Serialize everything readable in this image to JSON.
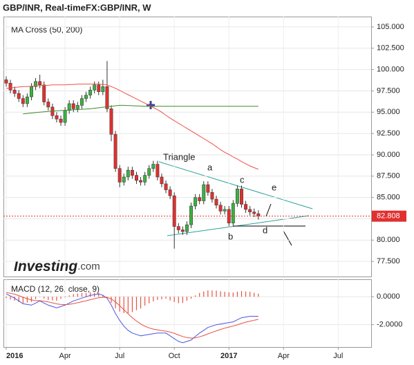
{
  "chart_data": [
    {
      "type": "candlestick",
      "title": "GBP/INR, Real-timeFX:GBP/INR, W",
      "indicator": "MA Cross (50, 200)",
      "up_color": "#3cb043",
      "down_color": "#e03030",
      "open": [
        98.8,
        98.4,
        97.6,
        97.2,
        96.6,
        96.0,
        96.8,
        98.0,
        98.6,
        98.2,
        96.2,
        95.6,
        94.6,
        94.2,
        93.8,
        95.2,
        96.0,
        95.4,
        95.8,
        96.6,
        97.0,
        97.6,
        98.2,
        97.4,
        98.0,
        95.4,
        92.4,
        88.4,
        86.8,
        87.4,
        88.2,
        87.6,
        87.0,
        86.8,
        87.6,
        88.4,
        88.9,
        87.4,
        86.6,
        85.9,
        85.2,
        81.6,
        81.2,
        81.0,
        81.8,
        84.0,
        85.0,
        84.6,
        86.5,
        85.6,
        84.8,
        84.1,
        83.4,
        83.6,
        82.0,
        84.3,
        86.0,
        84.2,
        83.6,
        83.3,
        83.1,
        null,
        null,
        null,
        null,
        null,
        null,
        null,
        null,
        null,
        null,
        null,
        null,
        null,
        null,
        null,
        null,
        null,
        null,
        null,
        null,
        null,
        null,
        null,
        null,
        null,
        null
      ],
      "high": [
        99.2,
        98.8,
        98.0,
        97.6,
        97.0,
        97.2,
        98.4,
        99.0,
        99.4,
        98.6,
        96.6,
        96.0,
        95.0,
        94.6,
        95.6,
        96.4,
        96.4,
        96.2,
        97.0,
        97.4,
        98.0,
        98.6,
        98.6,
        98.8,
        101.0,
        95.8,
        92.8,
        88.8,
        87.8,
        88.6,
        88.6,
        88.0,
        87.4,
        88.0,
        88.8,
        89.3,
        89.3,
        87.8,
        87.0,
        86.3,
        85.6,
        82.0,
        81.6,
        82.2,
        84.4,
        85.4,
        85.4,
        86.9,
        86.9,
        86.0,
        85.2,
        84.5,
        84.0,
        84.0,
        84.7,
        86.4,
        86.4,
        84.6,
        84.0,
        83.7,
        83.5,
        null,
        null,
        null,
        null,
        null,
        null,
        null,
        null,
        null,
        null,
        null,
        null,
        null,
        null,
        null,
        null,
        null,
        null,
        null,
        null,
        null,
        null,
        null,
        null,
        null,
        null
      ],
      "low": [
        98.0,
        97.2,
        96.8,
        96.2,
        95.6,
        95.6,
        96.4,
        97.6,
        97.8,
        95.8,
        95.2,
        94.2,
        93.8,
        93.4,
        93.4,
        94.8,
        95.0,
        95.0,
        95.4,
        96.2,
        96.6,
        97.2,
        97.0,
        97.0,
        95.0,
        91.6,
        88.0,
        86.2,
        86.4,
        87.0,
        87.2,
        86.6,
        86.4,
        86.4,
        87.2,
        88.0,
        87.0,
        86.2,
        85.5,
        84.8,
        79.0,
        80.8,
        80.6,
        80.6,
        81.4,
        83.6,
        84.2,
        84.2,
        85.2,
        84.4,
        83.7,
        83.0,
        83.0,
        81.6,
        81.6,
        83.9,
        83.8,
        83.2,
        82.9,
        82.7,
        82.4,
        null,
        null,
        null,
        null,
        null,
        null,
        null,
        null,
        null,
        null,
        null,
        null,
        null,
        null,
        null,
        null,
        null,
        null,
        null,
        null,
        null,
        null,
        null,
        null,
        null,
        null
      ],
      "close": [
        98.4,
        97.6,
        97.2,
        96.6,
        96.0,
        96.8,
        98.0,
        98.6,
        98.2,
        96.2,
        95.6,
        94.6,
        94.2,
        93.8,
        95.2,
        96.0,
        95.4,
        95.8,
        96.6,
        97.0,
        97.6,
        98.2,
        97.4,
        98.0,
        95.4,
        92.4,
        88.4,
        86.8,
        87.4,
        88.2,
        87.6,
        87.0,
        86.8,
        87.6,
        88.4,
        88.9,
        87.4,
        86.6,
        85.9,
        85.2,
        81.6,
        81.2,
        81.0,
        81.8,
        84.0,
        85.0,
        84.6,
        86.5,
        85.6,
        84.8,
        84.1,
        83.4,
        83.6,
        82.0,
        84.3,
        86.0,
        84.2,
        83.6,
        83.3,
        83.1,
        82.808,
        null,
        null,
        null,
        null,
        null,
        null,
        null,
        null,
        null,
        null,
        null,
        null,
        null,
        null,
        null,
        null,
        null,
        null,
        null,
        null,
        null,
        null,
        null,
        null,
        null,
        null
      ],
      "lines": [
        {
          "color": "#f0504a",
          "values": [
            97.8,
            97.85,
            97.9,
            97.95,
            98.0,
            98.0,
            98.05,
            98.1,
            98.1,
            98.15,
            98.15,
            98.2,
            98.2,
            98.2,
            98.2,
            98.25,
            98.25,
            98.3,
            98.3,
            98.3,
            98.3,
            98.3,
            98.3,
            98.25,
            98.2,
            98.0,
            97.8,
            97.55,
            97.3,
            97.05,
            96.8,
            96.55,
            96.3,
            96.05,
            95.8,
            95.55,
            95.3,
            95.0,
            94.65,
            94.3,
            94.0,
            93.7,
            93.4,
            93.1,
            92.8,
            92.5,
            92.2,
            91.9,
            91.6,
            91.3,
            90.95,
            90.6,
            90.3,
            90.05,
            89.75,
            89.5,
            89.2,
            88.95,
            88.7,
            88.5,
            88.3,
            null,
            null,
            null,
            null,
            null,
            null,
            null,
            null,
            null,
            null,
            null,
            null,
            null,
            null,
            null,
            null,
            null,
            null,
            null,
            null,
            null,
            null,
            null,
            null,
            null,
            null
          ]
        },
        {
          "color": "#3a8a2a",
          "values": [
            null,
            null,
            null,
            null,
            94.8,
            94.85,
            94.9,
            94.95,
            95.0,
            95.05,
            95.1,
            95.13,
            95.16,
            95.19,
            95.22,
            95.25,
            95.28,
            95.31,
            95.34,
            95.37,
            95.4,
            95.46,
            95.52,
            95.58,
            95.64,
            95.7,
            95.75,
            95.8,
            95.8,
            95.78,
            95.76,
            95.74,
            95.72,
            95.7,
            95.7,
            95.7,
            95.7,
            95.7,
            95.7,
            95.7,
            95.7,
            95.7,
            95.7,
            95.7,
            95.7,
            95.7,
            95.7,
            95.7,
            95.7,
            95.7,
            95.7,
            95.7,
            95.7,
            95.7,
            95.7,
            95.7,
            95.7,
            95.7,
            95.7,
            95.7,
            95.7,
            null,
            null,
            null,
            null,
            null,
            null,
            null,
            null,
            null,
            null,
            null,
            null,
            null,
            null,
            null,
            null,
            null,
            null,
            null,
            null,
            null,
            null,
            null,
            null,
            null,
            null
          ]
        }
      ],
      "last": 82.808,
      "last_color": "#e03030",
      "ylim": [
        75.73,
        106.21
      ],
      "yticks": [
        {
          "value": 77.5,
          "label": "77.500"
        },
        {
          "value": 80,
          "label": "80.000"
        },
        {
          "value": 82.5,
          "label": "82.500"
        },
        {
          "value": 85,
          "label": "85.000"
        },
        {
          "value": 87.5,
          "label": "87.500"
        },
        {
          "value": 90,
          "label": "90.000"
        },
        {
          "value": 92.5,
          "label": "92.500"
        },
        {
          "value": 95,
          "label": "95.000"
        },
        {
          "value": 97.5,
          "label": "97.500"
        },
        {
          "value": 100,
          "label": "100.000"
        },
        {
          "value": 102.5,
          "label": "102.500"
        },
        {
          "value": 105,
          "label": "105.000"
        }
      ],
      "grid": true,
      "annotations": [
        "Triangle",
        "a",
        "b",
        "c",
        "d",
        "e"
      ],
      "brand": [
        "Investing",
        ".com"
      ]
    },
    {
      "type": "macd",
      "label": "MACD (12, 26, close, 9)",
      "categories": [
        "2016",
        null,
        null,
        null,
        null,
        null,
        null,
        null,
        null,
        null,
        null,
        null,
        null,
        null,
        "Apr",
        null,
        null,
        null,
        null,
        null,
        null,
        null,
        null,
        null,
        null,
        null,
        null,
        "Jul",
        null,
        null,
        null,
        null,
        null,
        null,
        null,
        null,
        null,
        null,
        null,
        null,
        "Oct",
        null,
        null,
        null,
        null,
        null,
        null,
        null,
        null,
        null,
        null,
        null,
        null,
        "2017",
        null,
        null,
        null,
        null,
        null,
        null,
        null,
        null,
        null,
        null,
        null,
        null,
        "Apr",
        null,
        null,
        null,
        null,
        null,
        null,
        null,
        null,
        null,
        null,
        null,
        null,
        "Jul",
        null,
        null,
        null,
        null,
        null,
        null,
        null,
        null
      ],
      "lines": [
        {
          "color": "#4a55e0",
          "values": [
            0.2,
            0.05,
            -0.1,
            -0.3,
            -0.5,
            -0.55,
            -0.6,
            -0.45,
            -0.3,
            -0.45,
            -0.6,
            -0.7,
            -0.8,
            -0.7,
            -0.6,
            -0.45,
            -0.3,
            -0.2,
            -0.1,
            0.0,
            0.1,
            0.15,
            0.2,
            0.1,
            -0.1,
            -0.6,
            -1.2,
            -1.7,
            -2.1,
            -2.4,
            -2.6,
            -2.7,
            -2.8,
            -2.75,
            -2.7,
            -2.65,
            -2.6,
            -2.6,
            -2.6,
            -2.8,
            -3.0,
            -3.2,
            -3.3,
            -3.2,
            -3.1,
            -2.85,
            -2.6,
            -2.4,
            -2.2,
            -2.1,
            -2.0,
            -1.95,
            -1.9,
            -1.85,
            -1.8,
            -1.65,
            -1.5,
            -1.45,
            -1.4,
            -1.4,
            -1.4,
            null,
            null,
            null,
            null,
            null,
            null,
            null,
            null,
            null,
            null,
            null,
            null,
            null,
            null,
            null,
            null,
            null,
            null,
            null,
            null,
            null,
            null,
            null,
            null,
            null,
            null
          ]
        },
        {
          "color": "#e85040",
          "values": [
            0.3,
            0.25,
            0.18,
            0.08,
            -0.04,
            -0.14,
            -0.23,
            -0.28,
            -0.28,
            -0.32,
            -0.37,
            -0.44,
            -0.51,
            -0.55,
            -0.56,
            -0.54,
            -0.49,
            -0.43,
            -0.36,
            -0.29,
            -0.21,
            -0.14,
            -0.07,
            -0.04,
            -0.05,
            -0.16,
            -0.37,
            -0.64,
            -0.93,
            -1.22,
            -1.5,
            -1.74,
            -1.95,
            -2.11,
            -2.23,
            -2.32,
            -2.37,
            -2.42,
            -2.46,
            -2.53,
            -2.62,
            -2.74,
            -2.85,
            -2.92,
            -2.96,
            -2.94,
            -2.87,
            -2.78,
            -2.66,
            -2.55,
            -2.44,
            -2.34,
            -2.25,
            -2.17,
            -2.1,
            -2.01,
            -1.91,
            -1.82,
            -1.75,
            -1.68,
            -1.62,
            null,
            null,
            null,
            null,
            null,
            null,
            null,
            null,
            null,
            null,
            null,
            null,
            null,
            null,
            null,
            null,
            null,
            null,
            null,
            null,
            null,
            null,
            null,
            null,
            null,
            null
          ]
        }
      ],
      "histogram": {
        "color": "#e85040",
        "values": [
          -0.1,
          -0.2,
          -0.28,
          -0.38,
          -0.46,
          -0.41,
          -0.37,
          -0.17,
          -0.02,
          -0.13,
          -0.23,
          -0.26,
          -0.29,
          -0.15,
          -0.04,
          0.09,
          0.19,
          0.23,
          0.26,
          0.29,
          0.31,
          0.29,
          0.27,
          0.14,
          -0.05,
          -0.44,
          -0.83,
          -1.06,
          -1.17,
          -1.18,
          -1.1,
          -0.96,
          -0.85,
          -0.64,
          -0.47,
          -0.33,
          -0.23,
          -0.18,
          -0.14,
          -0.27,
          -0.38,
          -0.46,
          -0.45,
          -0.28,
          -0.14,
          0.09,
          0.27,
          0.38,
          0.46,
          0.45,
          0.44,
          0.39,
          0.35,
          0.32,
          0.3,
          0.36,
          0.41,
          0.37,
          0.35,
          0.28,
          0.22,
          null,
          null,
          null,
          null,
          null,
          null,
          null,
          null,
          null,
          null,
          null,
          null,
          null,
          null,
          null,
          null,
          null,
          null,
          null,
          null,
          null,
          null,
          null,
          null,
          null,
          null
        ]
      },
      "ylim": [
        -3.6,
        1.25
      ],
      "yticks": [
        {
          "value": -2,
          "label": "-2.0000"
        },
        {
          "value": 0,
          "label": "0.0000"
        }
      ],
      "grid": true
    }
  ]
}
